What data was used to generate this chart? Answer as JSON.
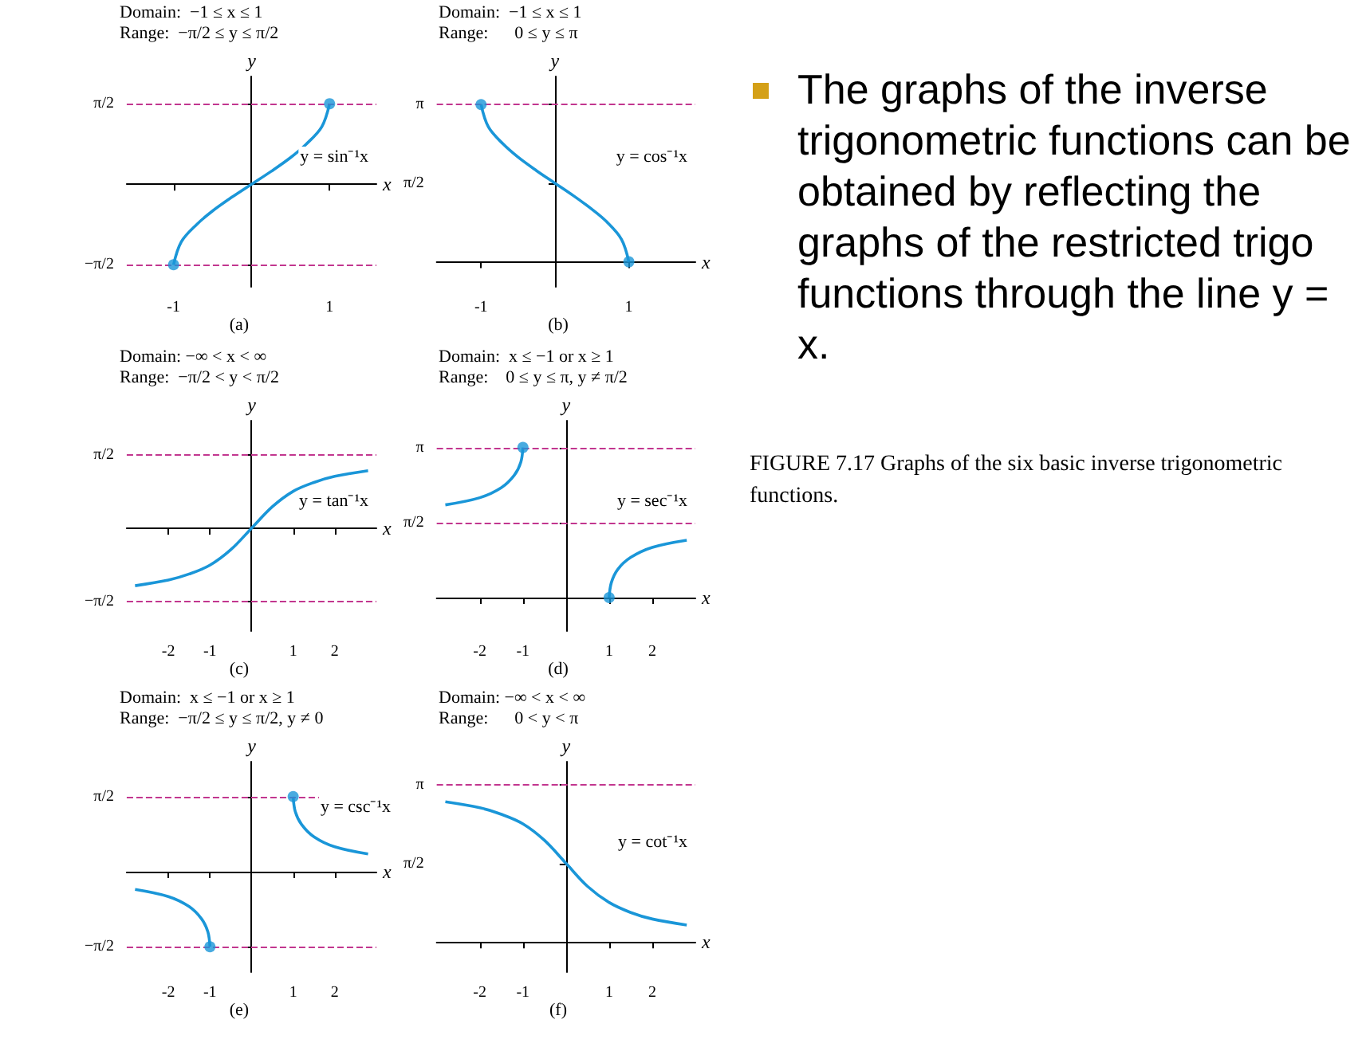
{
  "chart_data": [
    {
      "type": "line",
      "title": "(a)",
      "xlabel": "x",
      "ylabel": "y",
      "xlim": [
        -1.6,
        1.6
      ],
      "xticks": [
        -1,
        1
      ],
      "ylim": [
        -2,
        2.1
      ],
      "yticks": [
        {
          "value": -1.57,
          "label": "−π/2"
        },
        {
          "value": 1.57,
          "label": "π/2"
        }
      ],
      "annotations": [
        "Domain:  −1 ≤ x ≤ 1",
        "Range:  −π/2 ≤ y ≤ π/2"
      ],
      "ref_lines": [
        {
          "axis": "y",
          "value": 1.57,
          "label": null,
          "color": "#c2368f",
          "line_style": "dashed"
        },
        {
          "axis": "y",
          "value": -1.57,
          "label": null,
          "color": "#c2368f",
          "line_style": "dashed"
        }
      ],
      "series": [
        {
          "type": "line",
          "name": "y = sin⁻¹x",
          "color": "#1a96d8",
          "x": [
            -1,
            -0.9,
            -0.7,
            -0.5,
            -0.25,
            0,
            0.25,
            0.5,
            0.7,
            0.9,
            1
          ],
          "values": [
            -1.57,
            -1.12,
            -0.78,
            -0.52,
            -0.25,
            0,
            0.25,
            0.52,
            0.78,
            1.12,
            1.57
          ]
        },
        {
          "type": "scatter",
          "color": "#1a96d8",
          "x": [
            -1,
            1
          ],
          "values": [
            -1.57,
            1.57
          ]
        }
      ]
    },
    {
      "type": "line",
      "title": "(b)",
      "xlabel": "x",
      "ylabel": "y",
      "xlim": [
        -1.6,
        1.9
      ],
      "xticks": [
        -1,
        1
      ],
      "ylim": [
        -0.5,
        3.7
      ],
      "yticks": [
        {
          "value": 1.57,
          "label": "π/2"
        },
        {
          "value": 3.14,
          "label": "π"
        }
      ],
      "annotations": [
        "Domain:  −1 ≤ x ≤ 1",
        "Range:      0 ≤ y ≤ π"
      ],
      "ref_lines": [
        {
          "axis": "y",
          "value": 3.14,
          "label": null,
          "color": "#c2368f",
          "line_style": "dashed"
        }
      ],
      "series": [
        {
          "type": "line",
          "name": "y = cos⁻¹x",
          "color": "#1a96d8",
          "x": [
            -1,
            -0.9,
            -0.7,
            -0.5,
            -0.25,
            0,
            0.25,
            0.5,
            0.7,
            0.9,
            1
          ],
          "values": [
            3.14,
            2.69,
            2.35,
            2.09,
            1.82,
            1.57,
            1.32,
            1.05,
            0.8,
            0.45,
            0
          ]
        },
        {
          "type": "scatter",
          "color": "#1a96d8",
          "x": [
            -1,
            1
          ],
          "values": [
            3.14,
            0
          ]
        }
      ]
    },
    {
      "type": "line",
      "title": "(c)",
      "xlabel": "x",
      "ylabel": "y",
      "xlim": [
        -3,
        3
      ],
      "xticks": [
        -2,
        -1,
        1,
        2
      ],
      "ylim": [
        -2.2,
        2.3
      ],
      "yticks": [
        {
          "value": -1.57,
          "label": "−π/2"
        },
        {
          "value": 1.57,
          "label": "π/2"
        }
      ],
      "annotations": [
        "Domain: −∞ < x < ∞",
        "Range:  −π/2 < y < π/2"
      ],
      "ref_lines": [
        {
          "axis": "y",
          "value": 1.57,
          "label": null,
          "color": "#c2368f",
          "line_style": "dashed"
        },
        {
          "axis": "y",
          "value": -1.57,
          "label": null,
          "color": "#c2368f",
          "line_style": "dashed"
        }
      ],
      "series": [
        {
          "type": "line",
          "name": "y = tan⁻¹x",
          "color": "#1a96d8",
          "x": [
            -2.8,
            -2,
            -1.5,
            -1,
            -0.5,
            0,
            0.5,
            1,
            1.5,
            2,
            2.8
          ],
          "values": [
            -1.23,
            -1.11,
            -0.98,
            -0.79,
            -0.46,
            0,
            0.46,
            0.79,
            0.98,
            1.11,
            1.23
          ]
        }
      ]
    },
    {
      "type": "line",
      "title": "(d)",
      "xlabel": "x",
      "ylabel": "y",
      "xlim": [
        -3,
        3
      ],
      "xticks": [
        -2,
        -1,
        1,
        2
      ],
      "ylim": [
        -0.7,
        3.7
      ],
      "yticks": [
        {
          "value": 1.57,
          "label": "π/2"
        },
        {
          "value": 3.14,
          "label": "π"
        }
      ],
      "annotations": [
        "Domain:  x ≤ −1 or x ≥ 1",
        "Range:    0 ≤ y ≤ π, y ≠ π/2"
      ],
      "ref_lines": [
        {
          "axis": "y",
          "value": 1.57,
          "label": null,
          "color": "#c2368f",
          "line_style": "dashed"
        },
        {
          "axis": "y",
          "value": 3.14,
          "label": null,
          "color": "#c2368f",
          "line_style": "dashed"
        }
      ],
      "series": [
        {
          "type": "line",
          "name": "y = sec⁻¹x",
          "color": "#1a96d8",
          "x": [
            -2.8,
            -2,
            -1.5,
            -1.2,
            -1.05,
            -1
          ],
          "values": [
            1.94,
            2.09,
            2.3,
            2.56,
            2.83,
            3.14
          ]
        },
        {
          "type": "line",
          "color": "#1a96d8",
          "x": [
            1,
            1.05,
            1.2,
            1.5,
            2,
            2.8
          ],
          "values": [
            0,
            0.31,
            0.59,
            0.84,
            1.05,
            1.2
          ]
        },
        {
          "type": "scatter",
          "color": "#1a96d8",
          "x": [
            -1,
            1
          ],
          "values": [
            3.14,
            0
          ]
        }
      ]
    },
    {
      "type": "line",
      "title": "(e)",
      "xlabel": "x",
      "ylabel": "y",
      "xlim": [
        -3,
        3
      ],
      "xticks": [
        -2,
        -1,
        1,
        2
      ],
      "ylim": [
        -2.1,
        2.3
      ],
      "yticks": [
        {
          "value": -1.57,
          "label": "−π/2"
        },
        {
          "value": 1.57,
          "label": "π/2"
        }
      ],
      "annotations": [
        "Domain:  x ≤ −1 or x ≥ 1",
        "Range:  −π/2 ≤ y ≤ π/2, y ≠ 0"
      ],
      "ref_lines": [
        {
          "axis": "y",
          "value": 1.57,
          "label": null,
          "color": "#c2368f",
          "line_style": "dashed"
        },
        {
          "axis": "y",
          "value": -1.57,
          "label": null,
          "color": "#c2368f",
          "line_style": "dashed"
        }
      ],
      "series": [
        {
          "type": "line",
          "color": "#1a96d8",
          "x": [
            -2.8,
            -2,
            -1.5,
            -1.2,
            -1.05,
            -1
          ],
          "values": [
            -0.37,
            -0.52,
            -0.73,
            -0.99,
            -1.26,
            -1.57
          ]
        },
        {
          "type": "line",
          "name": "y = csc⁻¹x",
          "color": "#1a96d8",
          "x": [
            1,
            1.05,
            1.2,
            1.5,
            2,
            2.8
          ],
          "values": [
            1.57,
            1.26,
            0.99,
            0.73,
            0.52,
            0.37
          ]
        },
        {
          "type": "scatter",
          "color": "#1a96d8",
          "x": [
            -1,
            1
          ],
          "values": [
            -1.57,
            1.57
          ]
        }
      ]
    },
    {
      "type": "line",
      "title": "(f)",
      "xlabel": "x",
      "ylabel": "y",
      "xlim": [
        -3,
        3
      ],
      "xticks": [
        -2,
        -1,
        1,
        2
      ],
      "ylim": [
        -0.6,
        3.6
      ],
      "yticks": [
        {
          "value": 1.57,
          "label": "π/2"
        },
        {
          "value": 3.14,
          "label": "π"
        }
      ],
      "annotations": [
        "Domain: −∞ < x < ∞",
        "Range:      0 < y < π"
      ],
      "ref_lines": [
        {
          "axis": "y",
          "value": 3.14,
          "label": null,
          "color": "#c2368f",
          "line_style": "dashed"
        }
      ],
      "series": [
        {
          "type": "line",
          "name": "y = cot⁻¹x",
          "color": "#1a96d8",
          "x": [
            -2.8,
            -2,
            -1.5,
            -1,
            -0.5,
            0,
            0.5,
            1,
            1.5,
            2,
            2.8
          ],
          "values": [
            2.8,
            2.68,
            2.55,
            2.36,
            2.03,
            1.57,
            1.11,
            0.79,
            0.59,
            0.46,
            0.34
          ]
        }
      ]
    },
    {
      "type": "other",
      "annotations": [
        "The graphs of the inverse trigonometric functions can be obtained by reflecting the graphs of the restricted trigo functions through the line y = x.",
        "FIGURE 7.17  Graphs of the six basic inverse trigonometric functions."
      ]
    }
  ]
}
